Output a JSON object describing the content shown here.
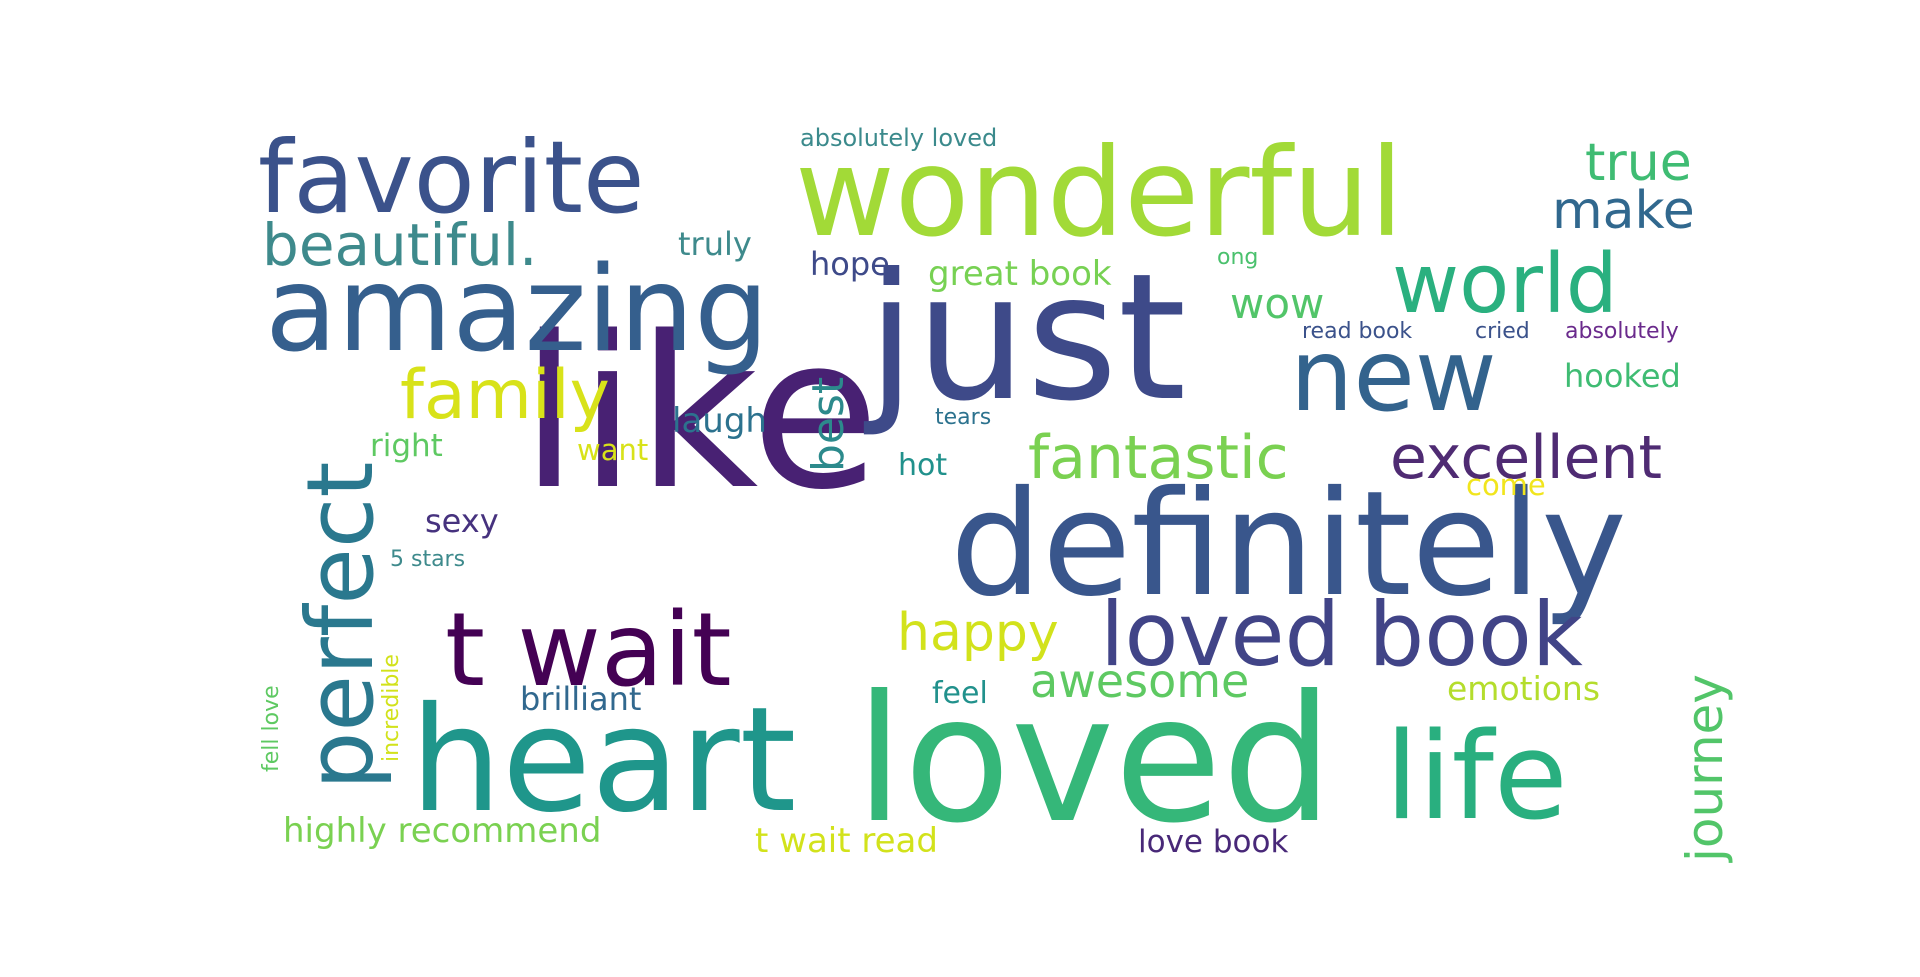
{
  "wordcloud": {
    "words": [
      {
        "text": "like",
        "color": "#482173"
      },
      {
        "text": "loved",
        "color": "#35b779"
      },
      {
        "text": "definitely",
        "color": "#39568c"
      },
      {
        "text": "just",
        "color": "#3e4a89"
      },
      {
        "text": "heart",
        "color": "#1f968b"
      },
      {
        "text": "amazing",
        "color": "#355f8d"
      },
      {
        "text": "wonderful",
        "color": "#a2da37"
      },
      {
        "text": "favorite",
        "color": "#3b528b"
      },
      {
        "text": "t wait",
        "color": "#440154"
      },
      {
        "text": "life",
        "color": "#29af7f"
      },
      {
        "text": "loved book",
        "color": "#414487"
      },
      {
        "text": "new",
        "color": "#33638d"
      },
      {
        "text": "perfect",
        "color": "#2a788e"
      },
      {
        "text": "world",
        "color": "#2ab07f"
      },
      {
        "text": "family",
        "color": "#d8e219"
      },
      {
        "text": "beautiful.",
        "color": "#3e8a8c"
      },
      {
        "text": "fantastic",
        "color": "#7ad151"
      },
      {
        "text": "excellent",
        "color": "#4f2b73"
      },
      {
        "text": "journey",
        "color": "#52c569"
      },
      {
        "text": "happy",
        "color": "#d2e21b"
      },
      {
        "text": "awesome",
        "color": "#5ec962"
      },
      {
        "text": "true",
        "color": "#3fbc73"
      },
      {
        "text": "make",
        "color": "#31688e"
      },
      {
        "text": "wow",
        "color": "#52c569"
      },
      {
        "text": "best",
        "color": "#2c8a8c"
      },
      {
        "text": "highly recommend",
        "color": "#7ad151"
      },
      {
        "text": "t wait read",
        "color": "#d2e21b"
      },
      {
        "text": "love book",
        "color": "#482878"
      },
      {
        "text": "brilliant",
        "color": "#31688e"
      },
      {
        "text": "great book",
        "color": "#77d153"
      },
      {
        "text": "emotions",
        "color": "#b4dd2c"
      },
      {
        "text": "hooked",
        "color": "#3fbc73"
      },
      {
        "text": "laugh",
        "color": "#2c728e"
      },
      {
        "text": "hope",
        "color": "#3e4a89"
      },
      {
        "text": "truly",
        "color": "#3e8a8c"
      },
      {
        "text": "sexy",
        "color": "#46327e"
      },
      {
        "text": "hot",
        "color": "#21918c"
      },
      {
        "text": "feel",
        "color": "#21918c"
      },
      {
        "text": "right",
        "color": "#5ec962"
      },
      {
        "text": "want",
        "color": "#d8e219"
      },
      {
        "text": "come",
        "color": "#f1e51d"
      },
      {
        "text": "absolutely loved",
        "color": "#3b8a8c"
      },
      {
        "text": "read book",
        "color": "#3b528b"
      },
      {
        "text": "cried",
        "color": "#3b528b"
      },
      {
        "text": "absolutely",
        "color": "#6a2a8c"
      },
      {
        "text": "ong",
        "color": "#4ac16d"
      },
      {
        "text": "tears",
        "color": "#2c728e"
      },
      {
        "text": "5 stars",
        "color": "#3e8a8c"
      },
      {
        "text": "incredible",
        "color": "#d2e21b"
      },
      {
        "text": "fell love",
        "color": "#5ec962"
      }
    ]
  }
}
